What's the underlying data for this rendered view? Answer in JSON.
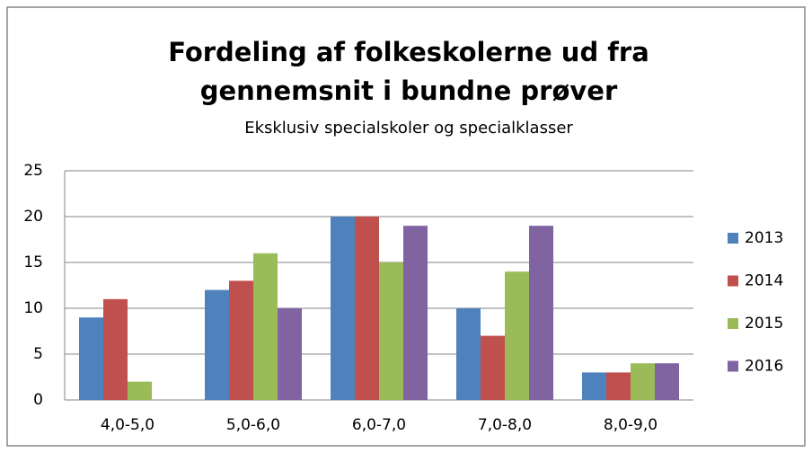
{
  "chart_data": {
    "type": "bar",
    "title": [
      "Fordeling af folkeskolerne ud fra",
      "gennemsnit i bundne prøver"
    ],
    "subtitle": "Eksklusiv specialskoler og specialklasser",
    "categories": [
      "4,0-5,0",
      "5,0-6,0",
      "6,0-7,0",
      "7,0-8,0",
      "8,0-9,0"
    ],
    "series": [
      {
        "name": "2013",
        "color": "#4f81bd",
        "values": [
          9,
          12,
          20,
          10,
          3
        ]
      },
      {
        "name": "2014",
        "color": "#c0504d",
        "values": [
          11,
          13,
          20,
          7,
          3
        ]
      },
      {
        "name": "2015",
        "color": "#9bbb59",
        "values": [
          2,
          16,
          15,
          14,
          4
        ]
      },
      {
        "name": "2016",
        "color": "#8064a2",
        "values": [
          0,
          10,
          19,
          19,
          4
        ]
      }
    ],
    "ylim": [
      0,
      25
    ],
    "yticks": [
      0,
      5,
      10,
      15,
      20,
      25
    ],
    "grid": true,
    "legend": "right"
  }
}
